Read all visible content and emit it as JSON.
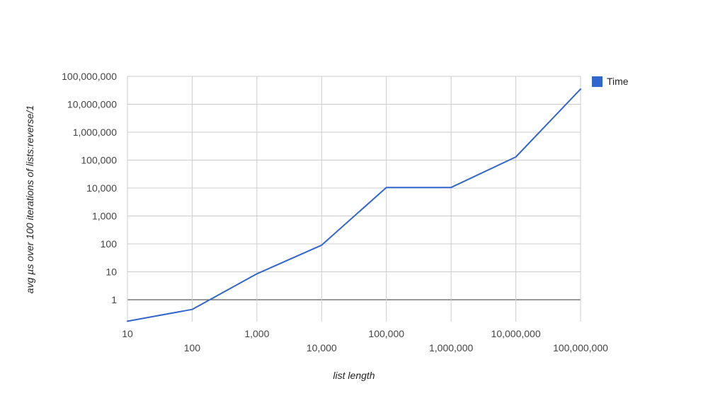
{
  "chart_data": {
    "type": "line",
    "title": "",
    "xlabel": "list length",
    "ylabel": "avg µs over 100 iterations of lists:reverse/1",
    "x_scale": "log",
    "y_scale": "log",
    "grid": true,
    "legend_position": "right",
    "x_ticks": [
      "10",
      "100",
      "1,000",
      "10,000",
      "100,000",
      "1,000,000",
      "10,000,000",
      "100,000,000"
    ],
    "y_ticks": [
      "1",
      "10",
      "100",
      "1,000",
      "10,000",
      "100,000",
      "1,000,000",
      "10,000,000",
      "100,000,000"
    ],
    "xlim": [
      10,
      100000000
    ],
    "ylim": [
      0.17,
      100000000
    ],
    "series": [
      {
        "name": "Time",
        "color": "#3366cc",
        "x": [
          10,
          100,
          1000,
          10000,
          100000,
          1000000,
          10000000,
          100000000
        ],
        "y": [
          0.17,
          0.45,
          8.5,
          90,
          10500,
          10500,
          130000,
          35000000
        ]
      }
    ]
  }
}
